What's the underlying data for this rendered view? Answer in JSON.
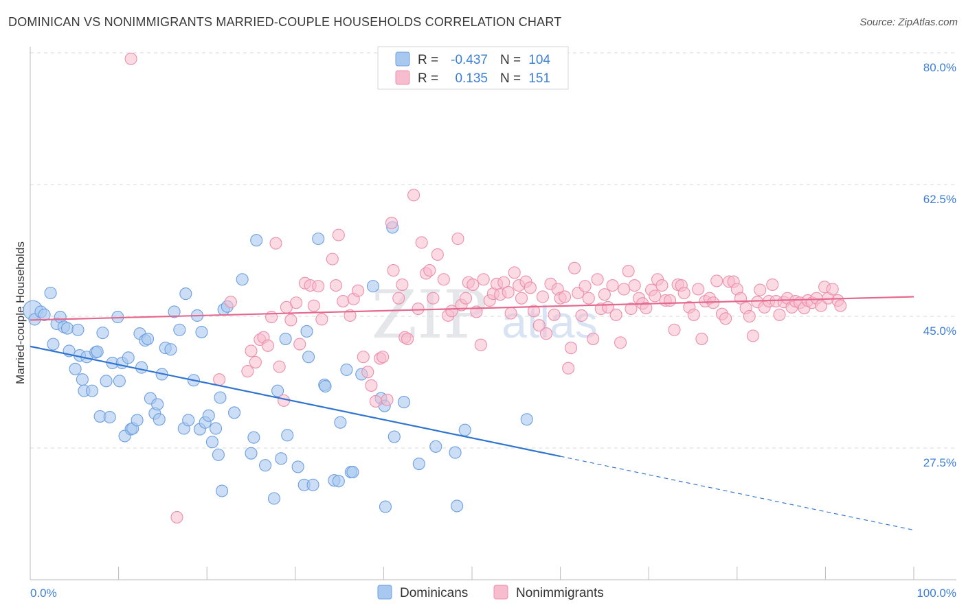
{
  "title": "DOMINICAN VS NONIMMIGRANTS MARRIED-COUPLE HOUSEHOLDS CORRELATION CHART",
  "source": "Source: ZipAtlas.com",
  "watermark": {
    "zip": "ZIP",
    "atlas": "atlas"
  },
  "colors": {
    "blue_fill": "#a9c8f0",
    "blue_stroke": "#6d9fe0",
    "blue_line": "#2f74d0",
    "pink_fill": "#f7bccd",
    "pink_stroke": "#ec8fab",
    "pink_line": "#e5688e",
    "tick_label": "#3d7fd4",
    "grid": "#d8d8d8"
  },
  "legend": {
    "r_label": "R =",
    "n_label": "N =",
    "rows": [
      {
        "series": "Dominicans",
        "r": "-0.437",
        "n": "104"
      },
      {
        "series": "Nonimmigrants",
        "r": "0.135",
        "n": "151"
      }
    ]
  },
  "chart_data": {
    "type": "scatter",
    "title": "DOMINICAN VS NONIMMIGRANTS MARRIED-COUPLE HOUSEHOLDS CORRELATION CHART",
    "xlabel": "",
    "ylabel": "Married-couple Households",
    "xlim": [
      0,
      100
    ],
    "ylim": [
      10,
      83
    ],
    "x_tick_labels": [
      "0.0%",
      "100.0%"
    ],
    "y_ticks": [
      27.5,
      45.0,
      62.5,
      80.0
    ],
    "y_tick_labels": [
      "27.5%",
      "45.0%",
      "62.5%",
      "80.0%"
    ],
    "grid": "horizontal dashed",
    "legend_position": "top-center",
    "series": [
      {
        "name": "Dominicans",
        "trend": {
          "x_start": 0,
          "y_start": 41.0,
          "x_end": 60,
          "y_end": 26.4,
          "dashed_to_x": 100,
          "dashed_to_y": 16.6
        },
        "points": [
          [
            0.3,
            45.8
          ],
          [
            0.5,
            44.6
          ],
          [
            1.2,
            45.6
          ],
          [
            1.6,
            45.2
          ],
          [
            2.3,
            48.1
          ],
          [
            2.6,
            41.3
          ],
          [
            3.0,
            44.0
          ],
          [
            3.4,
            44.9
          ],
          [
            3.8,
            43.6
          ],
          [
            4.2,
            43.4
          ],
          [
            4.4,
            40.4
          ],
          [
            5.1,
            38.0
          ],
          [
            5.4,
            43.2
          ],
          [
            5.6,
            39.8
          ],
          [
            5.9,
            36.6
          ],
          [
            6.1,
            35.1
          ],
          [
            6.4,
            39.6
          ],
          [
            7.0,
            35.1
          ],
          [
            7.4,
            40.2
          ],
          [
            7.6,
            40.3
          ],
          [
            7.9,
            31.7
          ],
          [
            8.2,
            42.8
          ],
          [
            8.6,
            36.4
          ],
          [
            9.0,
            31.6
          ],
          [
            9.3,
            38.8
          ],
          [
            9.9,
            44.9
          ],
          [
            10.1,
            36.4
          ],
          [
            10.4,
            38.8
          ],
          [
            10.7,
            29.1
          ],
          [
            11.1,
            39.5
          ],
          [
            11.4,
            30.0
          ],
          [
            11.6,
            30.1
          ],
          [
            12.1,
            31.2
          ],
          [
            12.4,
            42.7
          ],
          [
            12.6,
            38.2
          ],
          [
            13.0,
            41.8
          ],
          [
            13.3,
            42.0
          ],
          [
            13.6,
            34.1
          ],
          [
            14.1,
            32.1
          ],
          [
            14.4,
            33.3
          ],
          [
            14.6,
            31.3
          ],
          [
            14.9,
            37.3
          ],
          [
            15.3,
            40.8
          ],
          [
            15.9,
            40.6
          ],
          [
            16.3,
            45.6
          ],
          [
            16.9,
            43.2
          ],
          [
            17.4,
            30.1
          ],
          [
            17.6,
            48.0
          ],
          [
            17.9,
            31.2
          ],
          [
            18.5,
            36.5
          ],
          [
            18.9,
            45.1
          ],
          [
            19.2,
            30.0
          ],
          [
            19.4,
            42.9
          ],
          [
            19.8,
            30.9
          ],
          [
            20.2,
            31.8
          ],
          [
            20.6,
            28.3
          ],
          [
            21.0,
            30.1
          ],
          [
            21.3,
            26.6
          ],
          [
            21.5,
            34.2
          ],
          [
            21.7,
            21.8
          ],
          [
            21.9,
            45.9
          ],
          [
            22.3,
            46.3
          ],
          [
            23.1,
            32.2
          ],
          [
            24.0,
            49.9
          ],
          [
            25.0,
            26.8
          ],
          [
            25.3,
            28.9
          ],
          [
            25.6,
            55.1
          ],
          [
            26.6,
            25.2
          ],
          [
            27.6,
            20.8
          ],
          [
            28.0,
            35.1
          ],
          [
            28.4,
            26.1
          ],
          [
            28.9,
            42.0
          ],
          [
            29.1,
            29.2
          ],
          [
            30.3,
            25.0
          ],
          [
            31.0,
            22.6
          ],
          [
            31.3,
            43.0
          ],
          [
            31.5,
            39.6
          ],
          [
            32.0,
            22.6
          ],
          [
            32.6,
            55.3
          ],
          [
            33.3,
            35.9
          ],
          [
            33.4,
            35.7
          ],
          [
            34.4,
            23.2
          ],
          [
            34.9,
            23.1
          ],
          [
            35.1,
            30.9
          ],
          [
            35.8,
            37.9
          ],
          [
            36.3,
            24.3
          ],
          [
            36.5,
            24.3
          ],
          [
            37.5,
            37.3
          ],
          [
            38.8,
            49.0
          ],
          [
            39.7,
            34.1
          ],
          [
            40.1,
            33.1
          ],
          [
            40.2,
            19.7
          ],
          [
            41.0,
            56.8
          ],
          [
            41.2,
            29.0
          ],
          [
            42.3,
            33.6
          ],
          [
            44.0,
            25.4
          ],
          [
            45.9,
            27.7
          ],
          [
            48.1,
            26.9
          ],
          [
            48.3,
            19.8
          ],
          [
            49.2,
            29.9
          ],
          [
            56.2,
            31.3
          ]
        ],
        "sizes": {
          "0.3": "large"
        }
      },
      {
        "name": "Nonimmigrants",
        "trend": {
          "x_start": 0,
          "y_start": 44.5,
          "x_end": 100,
          "y_end": 47.6
        },
        "points": [
          [
            11.4,
            79.2
          ],
          [
            16.6,
            18.3
          ],
          [
            21.4,
            36.6
          ],
          [
            22.7,
            46.9
          ],
          [
            24.6,
            37.7
          ],
          [
            25.0,
            40.4
          ],
          [
            25.5,
            38.9
          ],
          [
            26.0,
            41.9
          ],
          [
            26.4,
            42.2
          ],
          [
            26.9,
            41.1
          ],
          [
            27.3,
            44.9
          ],
          [
            27.8,
            54.7
          ],
          [
            28.2,
            38.3
          ],
          [
            28.7,
            33.8
          ],
          [
            29.0,
            46.2
          ],
          [
            29.5,
            44.5
          ],
          [
            30.1,
            46.8
          ],
          [
            30.5,
            41.3
          ],
          [
            31.1,
            49.4
          ],
          [
            31.7,
            49.1
          ],
          [
            32.1,
            46.4
          ],
          [
            32.6,
            49.0
          ],
          [
            33.0,
            44.6
          ],
          [
            34.2,
            52.6
          ],
          [
            34.6,
            49.1
          ],
          [
            34.9,
            55.8
          ],
          [
            35.4,
            47.0
          ],
          [
            36.2,
            45.1
          ],
          [
            36.6,
            47.3
          ],
          [
            37.1,
            48.4
          ],
          [
            37.7,
            39.6
          ],
          [
            38.2,
            37.6
          ],
          [
            38.6,
            35.8
          ],
          [
            39.1,
            33.7
          ],
          [
            39.6,
            39.4
          ],
          [
            39.9,
            39.6
          ],
          [
            40.4,
            33.9
          ],
          [
            40.9,
            57.4
          ],
          [
            41.1,
            51.1
          ],
          [
            41.7,
            47.4
          ],
          [
            42.1,
            49.2
          ],
          [
            42.4,
            42.2
          ],
          [
            42.7,
            42.0
          ],
          [
            43.4,
            61.1
          ],
          [
            43.9,
            46.0
          ],
          [
            44.3,
            54.8
          ],
          [
            44.8,
            50.7
          ],
          [
            45.2,
            51.1
          ],
          [
            45.6,
            47.4
          ],
          [
            46.1,
            53.2
          ],
          [
            46.8,
            49.9
          ],
          [
            47.3,
            45.1
          ],
          [
            47.7,
            45.7
          ],
          [
            48.4,
            55.3
          ],
          [
            48.8,
            46.5
          ],
          [
            49.3,
            47.4
          ],
          [
            49.6,
            49.5
          ],
          [
            50.1,
            49.2
          ],
          [
            50.5,
            45.6
          ],
          [
            51.0,
            41.2
          ],
          [
            51.3,
            49.9
          ],
          [
            52.0,
            47.1
          ],
          [
            52.4,
            48.0
          ],
          [
            52.8,
            49.3
          ],
          [
            53.2,
            47.9
          ],
          [
            53.6,
            49.5
          ],
          [
            54.1,
            48.2
          ],
          [
            54.4,
            45.4
          ],
          [
            54.8,
            50.8
          ],
          [
            55.3,
            49.1
          ],
          [
            55.6,
            47.4
          ],
          [
            56.1,
            49.6
          ],
          [
            56.6,
            48.8
          ],
          [
            57.0,
            45.7
          ],
          [
            57.6,
            43.8
          ],
          [
            58.0,
            47.6
          ],
          [
            58.4,
            42.7
          ],
          [
            58.9,
            49.3
          ],
          [
            59.3,
            45.2
          ],
          [
            59.7,
            48.6
          ],
          [
            60.0,
            47.4
          ],
          [
            60.5,
            47.6
          ],
          [
            60.9,
            38.1
          ],
          [
            61.2,
            40.8
          ],
          [
            61.6,
            51.4
          ],
          [
            62.0,
            48.1
          ],
          [
            62.4,
            45.1
          ],
          [
            62.8,
            49.0
          ],
          [
            63.2,
            47.4
          ],
          [
            63.7,
            42.0
          ],
          [
            64.2,
            49.9
          ],
          [
            64.6,
            46.0
          ],
          [
            65.0,
            47.9
          ],
          [
            65.4,
            46.2
          ],
          [
            65.9,
            49.1
          ],
          [
            66.3,
            45.2
          ],
          [
            66.8,
            41.5
          ],
          [
            67.2,
            48.6
          ],
          [
            67.7,
            51.0
          ],
          [
            68.0,
            46.0
          ],
          [
            68.4,
            49.1
          ],
          [
            68.9,
            47.4
          ],
          [
            69.3,
            46.7
          ],
          [
            69.7,
            46.1
          ],
          [
            70.3,
            48.5
          ],
          [
            70.7,
            47.7
          ],
          [
            71.0,
            49.9
          ],
          [
            71.5,
            49.1
          ],
          [
            71.9,
            47.1
          ],
          [
            72.4,
            47.1
          ],
          [
            72.9,
            43.2
          ],
          [
            73.3,
            49.2
          ],
          [
            73.7,
            49.1
          ],
          [
            74.0,
            48.1
          ],
          [
            74.6,
            46.2
          ],
          [
            75.1,
            45.2
          ],
          [
            75.6,
            48.6
          ],
          [
            76.0,
            42.0
          ],
          [
            76.4,
            47.0
          ],
          [
            76.9,
            47.4
          ],
          [
            77.3,
            46.8
          ],
          [
            77.7,
            49.7
          ],
          [
            78.3,
            45.3
          ],
          [
            78.7,
            44.7
          ],
          [
            79.1,
            49.6
          ],
          [
            79.6,
            49.6
          ],
          [
            80.0,
            48.6
          ],
          [
            80.4,
            47.4
          ],
          [
            81.0,
            46.1
          ],
          [
            81.4,
            45.0
          ],
          [
            81.8,
            42.4
          ],
          [
            82.3,
            46.9
          ],
          [
            82.6,
            48.5
          ],
          [
            83.1,
            46.2
          ],
          [
            83.6,
            47.0
          ],
          [
            84.0,
            49.2
          ],
          [
            84.4,
            47.0
          ],
          [
            84.8,
            45.2
          ],
          [
            85.3,
            46.9
          ],
          [
            85.7,
            47.4
          ],
          [
            86.2,
            46.2
          ],
          [
            86.6,
            47.0
          ],
          [
            87.1,
            46.8
          ],
          [
            87.6,
            46.1
          ],
          [
            88.0,
            47.1
          ],
          [
            88.5,
            46.8
          ],
          [
            89.0,
            47.4
          ],
          [
            89.5,
            46.4
          ],
          [
            89.9,
            48.9
          ],
          [
            90.3,
            47.4
          ],
          [
            90.8,
            48.6
          ],
          [
            91.4,
            47.1
          ],
          [
            91.7,
            46.4
          ]
        ]
      }
    ]
  }
}
